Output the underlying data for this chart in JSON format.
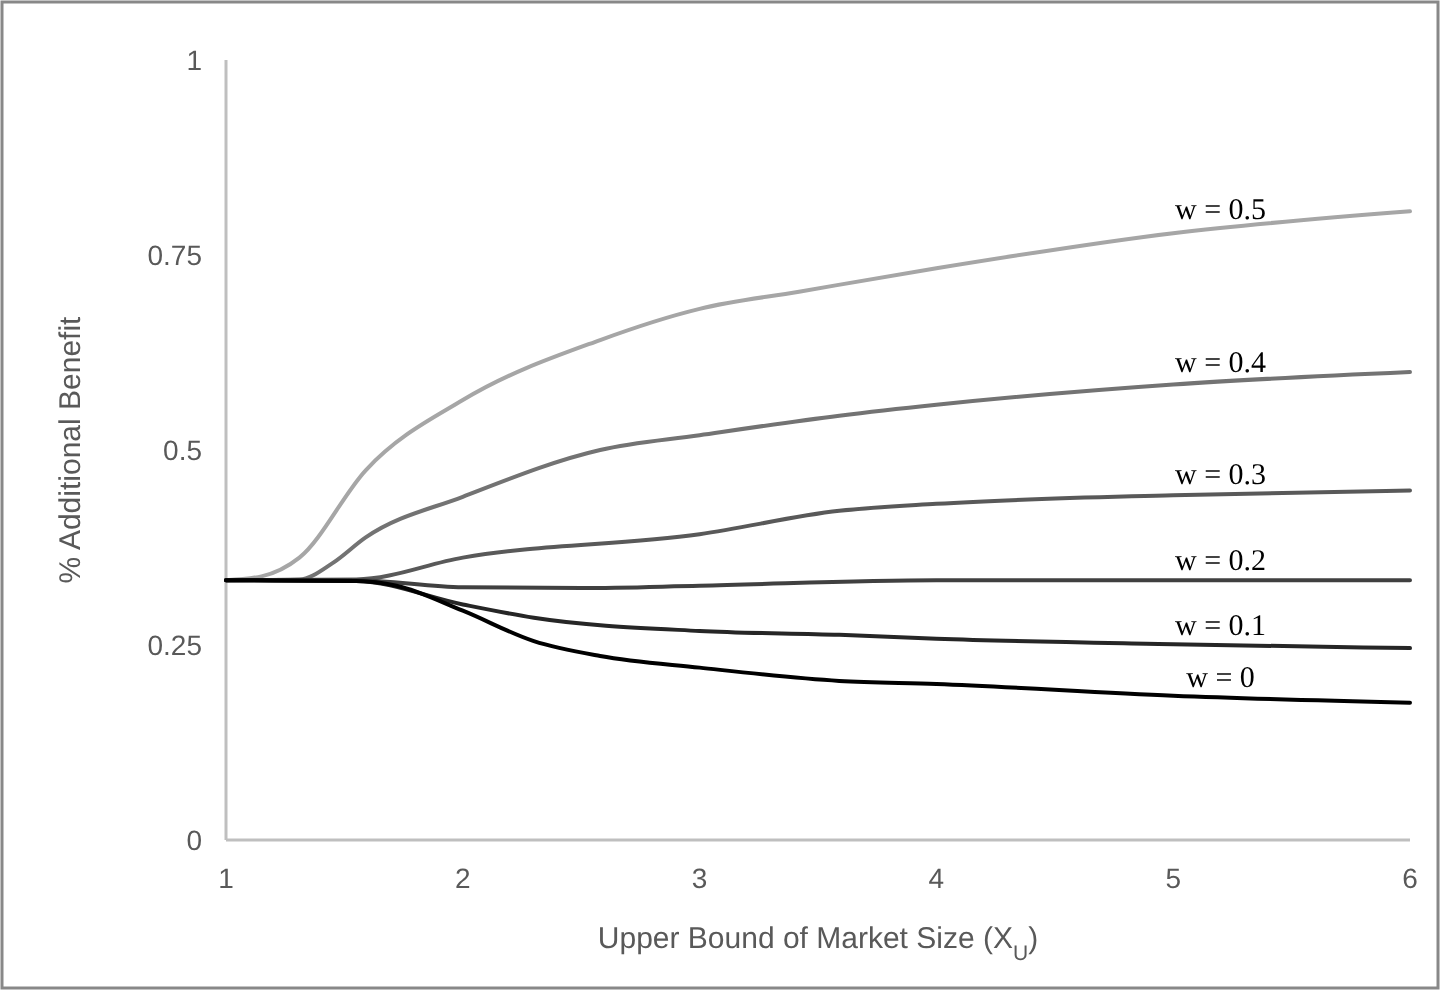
{
  "chart_data": {
    "type": "line",
    "xlabel": "Upper Bound of Market Size (X$_{U}$)",
    "ylabel": "% Additional Benefit",
    "xlim": [
      1,
      6
    ],
    "ylim": [
      0,
      1
    ],
    "xticks": [
      1,
      2,
      3,
      4,
      5,
      6
    ],
    "yticks": [
      0,
      0.25,
      0.5,
      {
        "value": 0.75,
        "label": "0.75"
      },
      1
    ],
    "grid": false,
    "marker": "none",
    "line_style": "solid",
    "series": [
      {
        "name": "w = 0.5",
        "color": "#a6a6a6",
        "x": [
          1,
          1.15,
          1.31,
          1.59,
          2,
          2.58,
          3,
          3.42,
          4,
          5,
          6
        ],
        "values": [
          0.333,
          0.338,
          0.362,
          0.474,
          0.564,
          0.641,
          0.681,
          0.703,
          0.733,
          0.778,
          0.806
        ]
      },
      {
        "name": "w = 0.4",
        "color": "#737373",
        "x": [
          1,
          1.31,
          1.45,
          1.59,
          2,
          2.58,
          3,
          3.59,
          4,
          5,
          6
        ],
        "values": [
          0.333,
          0.334,
          0.355,
          0.388,
          0.44,
          0.5,
          0.519,
          0.544,
          0.558,
          0.584,
          0.6
        ]
      },
      {
        "name": "w = 0.3",
        "color": "#595959",
        "x": [
          1,
          1.55,
          2,
          3,
          3.59,
          4,
          5,
          6
        ],
        "values": [
          0.333,
          0.334,
          0.362,
          0.392,
          0.422,
          0.431,
          0.442,
          0.448
        ]
      },
      {
        "name": "w = 0.2",
        "color": "#404040",
        "x": [
          1,
          1.55,
          2,
          2.5,
          3,
          4,
          6
        ],
        "values": [
          0.333,
          0.333,
          0.324,
          0.323,
          0.326,
          0.333,
          0.333
        ]
      },
      {
        "name": "w = 0.1",
        "color": "#262626",
        "x": [
          1,
          1.55,
          2,
          2.3,
          3,
          3.59,
          4,
          5,
          6
        ],
        "values": [
          0.333,
          0.332,
          0.302,
          0.285,
          0.268,
          0.263,
          0.258,
          0.251,
          0.246
        ]
      },
      {
        "name": "w = 0",
        "color": "#000000",
        "x": [
          1,
          1.55,
          1.72,
          2,
          2.3,
          2.58,
          3,
          3.59,
          4,
          5,
          6
        ],
        "values": [
          0.333,
          0.332,
          0.326,
          0.294,
          0.255,
          0.236,
          0.221,
          0.204,
          0.2,
          0.185,
          0.176
        ]
      }
    ]
  }
}
